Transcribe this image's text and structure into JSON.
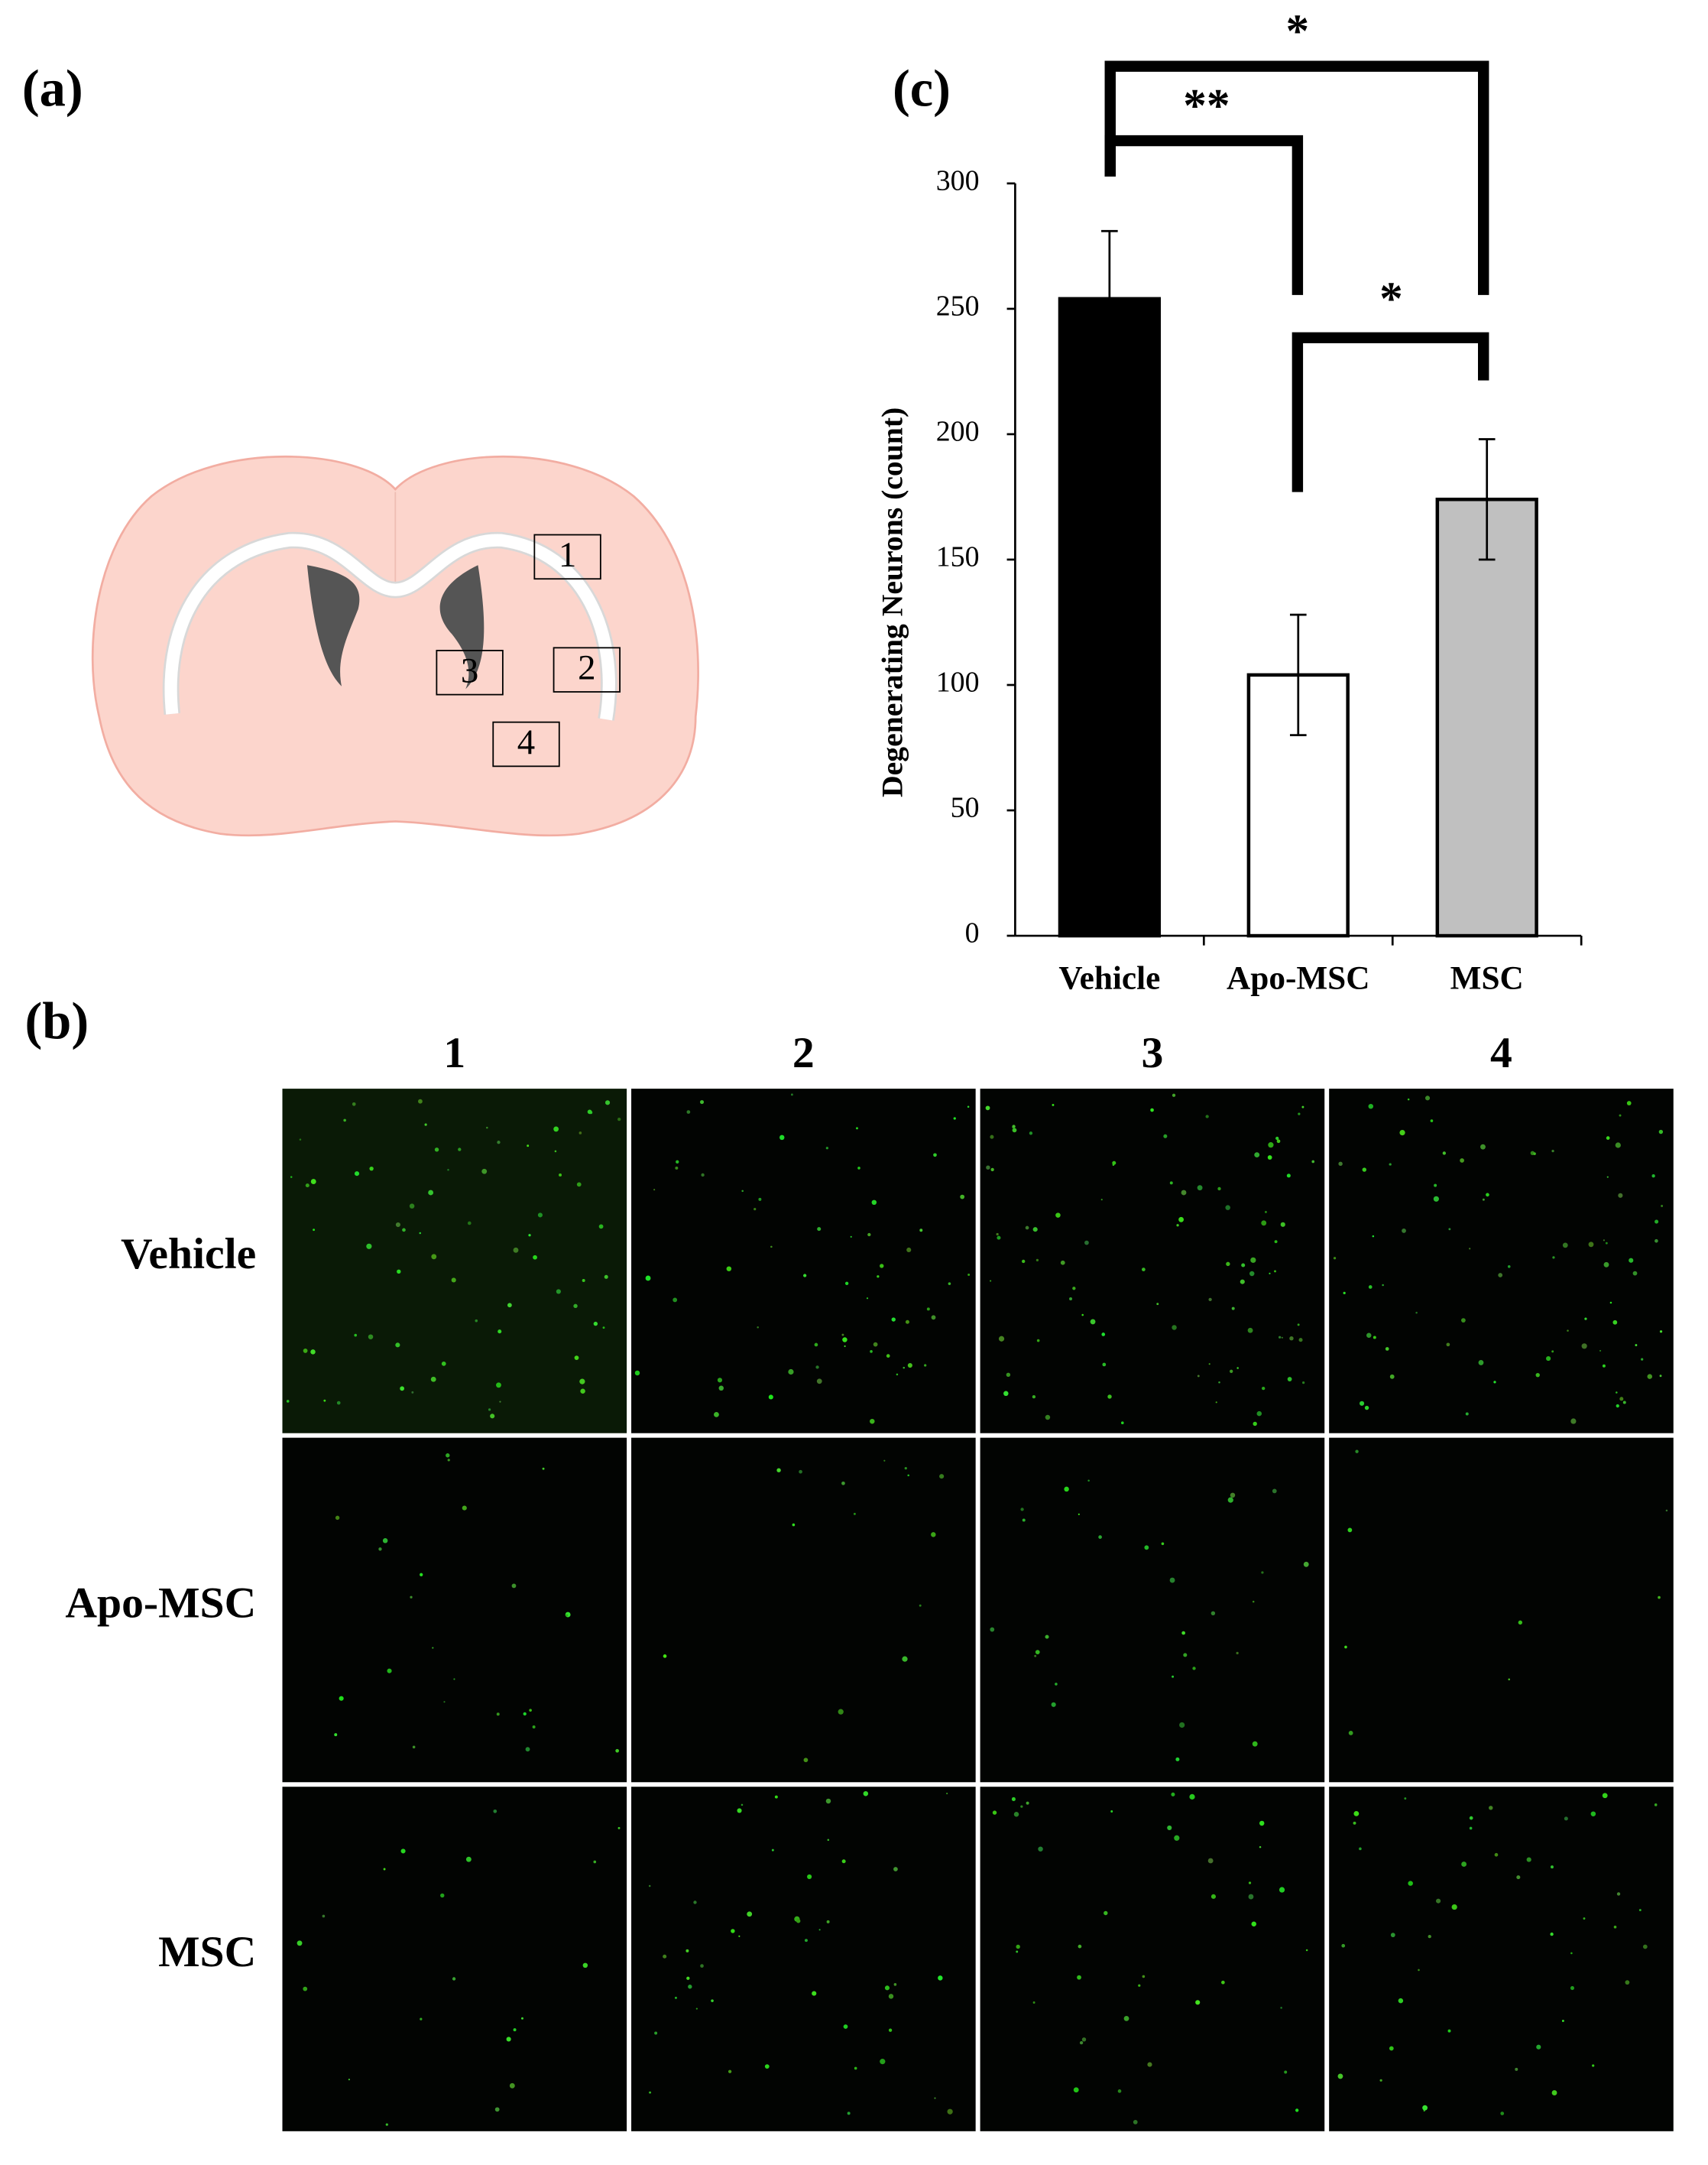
{
  "panel_labels": {
    "a": "(a)",
    "b": "(b)",
    "c": "(c)"
  },
  "diagram": {
    "regions": [
      "1",
      "2",
      "3",
      "4"
    ]
  },
  "image_grid": {
    "columns": [
      "1",
      "2",
      "3",
      "4"
    ],
    "rows": [
      "Vehicle",
      "Apo-MSC",
      "MSC"
    ]
  },
  "chart_data": {
    "type": "bar",
    "ylabel": "Degenerating Neurons (count)",
    "categories": [
      "Vehicle",
      "Apo-MSC",
      "MSC"
    ],
    "values": [
      254,
      104,
      174
    ],
    "errors": [
      27,
      24,
      24
    ],
    "colors": [
      "#000000",
      "#ffffff",
      "#c0c0c0"
    ],
    "ylim": [
      0,
      300
    ],
    "yticks": [
      0,
      50,
      100,
      150,
      200,
      250,
      300
    ],
    "significance": [
      {
        "pair": [
          "Vehicle",
          "MSC"
        ],
        "label": "*"
      },
      {
        "pair": [
          "Vehicle",
          "Apo-MSC"
        ],
        "label": "**"
      },
      {
        "pair": [
          "Apo-MSC",
          "MSC"
        ],
        "label": "*"
      }
    ]
  }
}
